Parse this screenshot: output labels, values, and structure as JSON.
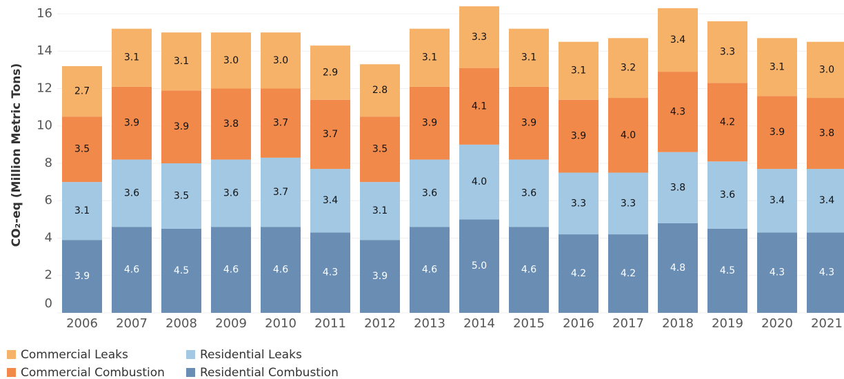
{
  "chart_data": {
    "type": "stacked_bar",
    "y_label": "CO₂-eq (Million Metric Tons)",
    "categories": [
      "2006",
      "2007",
      "2008",
      "2009",
      "2010",
      "2011",
      "2012",
      "2013",
      "2014",
      "2015",
      "2016",
      "2017",
      "2018",
      "2019",
      "2020",
      "2021"
    ],
    "series": [
      {
        "name": "Residential Combustion",
        "color": "#6a8db4",
        "label_color": "#ffffff",
        "values": [
          3.9,
          4.6,
          4.5,
          4.6,
          4.6,
          4.3,
          3.9,
          4.6,
          5.0,
          4.6,
          4.2,
          4.2,
          4.8,
          4.5,
          4.3,
          4.3
        ],
        "value_labels": [
          "3.9",
          "4.6",
          "4.5",
          "4.6",
          "4.6",
          "4.3",
          "3.9",
          "4.6",
          "5.0",
          "4.6",
          "4.2",
          "4.2",
          "4.8",
          "4.5",
          "4.3",
          "4.3"
        ]
      },
      {
        "name": "Residential Leaks",
        "color": "#a3c8e4",
        "label_color": "#111111",
        "values": [
          3.1,
          3.6,
          3.5,
          3.6,
          3.7,
          3.4,
          3.1,
          3.6,
          4.0,
          3.6,
          3.3,
          3.3,
          3.8,
          3.6,
          3.4,
          3.4
        ],
        "value_labels": [
          "3.1",
          "3.6",
          "3.5",
          "3.6",
          "3.7",
          "3.4",
          "3.1",
          "3.6",
          "4.0",
          "3.6",
          "3.3",
          "3.3",
          "3.8",
          "3.6",
          "3.4",
          "3.4"
        ]
      },
      {
        "name": "Commercial Combustion",
        "color": "#f0894a",
        "label_color": "#111111",
        "values": [
          3.5,
          3.9,
          3.9,
          3.8,
          3.7,
          3.7,
          3.5,
          3.9,
          4.1,
          3.9,
          3.9,
          4.0,
          4.3,
          4.2,
          3.9,
          3.8
        ],
        "value_labels": [
          "3.5",
          "3.9",
          "3.9",
          "3.8",
          "3.7",
          "3.7",
          "3.5",
          "3.9",
          "4.1",
          "3.9",
          "3.9",
          "4.0",
          "4.3",
          "4.2",
          "3.9",
          "3.8"
        ]
      },
      {
        "name": "Commercial Leaks",
        "color": "#f7b26a",
        "label_color": "#111111",
        "values": [
          2.7,
          3.1,
          3.1,
          3.0,
          3.0,
          2.9,
          2.8,
          3.1,
          3.3,
          3.1,
          3.1,
          3.2,
          3.4,
          3.3,
          3.1,
          3.0
        ],
        "value_labels": [
          "2.7",
          "3.1",
          "3.1",
          "3.0",
          "3.0",
          "2.9",
          "2.8",
          "3.1",
          "3.3",
          "3.1",
          "3.1",
          "3.2",
          "3.4",
          "3.3",
          "3.1",
          "3.0"
        ]
      }
    ],
    "ylim": [
      0,
      16.7
    ],
    "yticks": [
      0,
      2,
      4,
      6,
      8,
      10,
      12,
      14,
      16
    ],
    "grid": true
  }
}
